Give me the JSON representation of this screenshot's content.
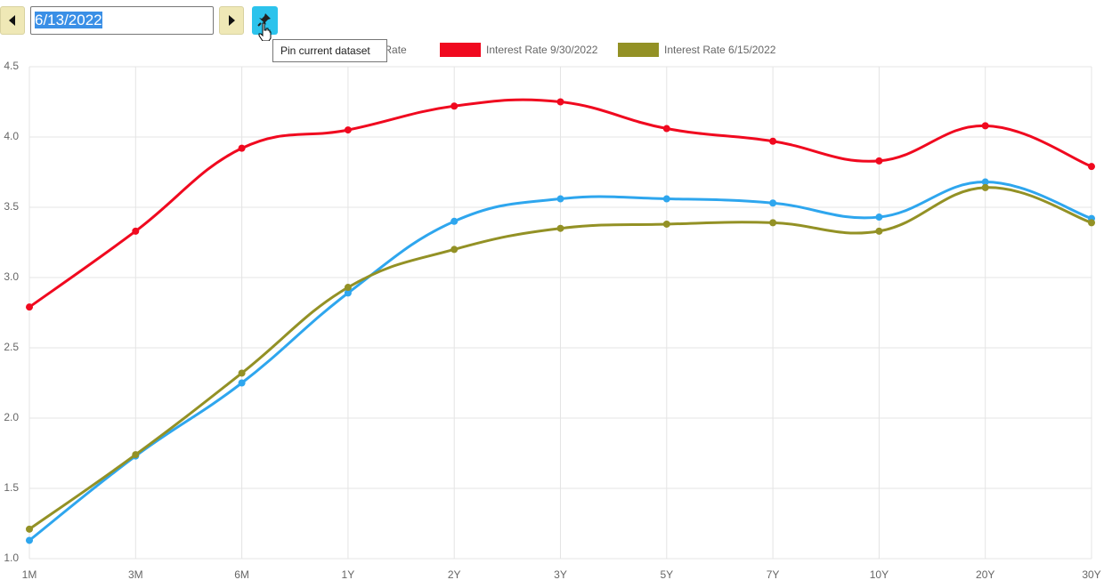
{
  "controls": {
    "date": "6/13/2022",
    "tooltip": "Pin current dataset"
  },
  "chart_data": {
    "type": "line",
    "categories": [
      "1M",
      "3M",
      "6M",
      "1Y",
      "2Y",
      "3Y",
      "5Y",
      "7Y",
      "10Y",
      "20Y",
      "30Y"
    ],
    "series": [
      {
        "name": "Interest Rate",
        "color": "#2ea6ee",
        "values": [
          1.13,
          1.73,
          2.25,
          2.89,
          3.4,
          3.56,
          3.56,
          3.53,
          3.43,
          3.68,
          3.42
        ]
      },
      {
        "name": "Interest Rate 9/30/2022",
        "color": "#f0091f",
        "values": [
          2.79,
          3.33,
          3.92,
          4.05,
          4.22,
          4.25,
          4.06,
          3.97,
          3.83,
          4.08,
          3.79
        ]
      },
      {
        "name": "Interest Rate 6/15/2022",
        "color": "#939125",
        "values": [
          1.21,
          1.74,
          2.32,
          2.93,
          3.2,
          3.35,
          3.38,
          3.39,
          3.33,
          3.64,
          3.39
        ]
      }
    ],
    "ylim": [
      1,
      4.5
    ],
    "yticks": [
      {
        "value": 1,
        "label": "1.0"
      },
      1.5,
      {
        "value": 2,
        "label": "2.0"
      },
      2.5,
      {
        "value": 3,
        "label": "3.0"
      },
      3.5,
      {
        "value": 4,
        "label": "4.0"
      },
      4.5
    ],
    "grid": true
  }
}
